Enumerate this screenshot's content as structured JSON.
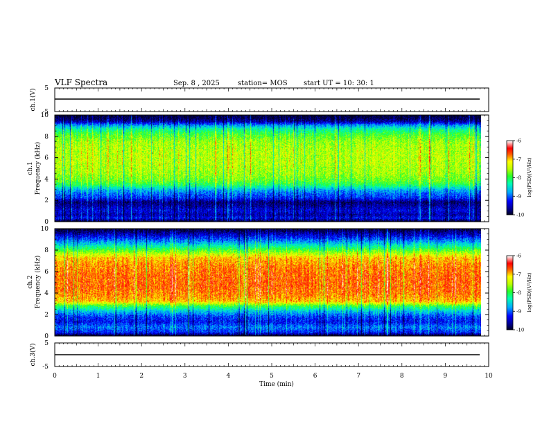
{
  "header": {
    "title": "VLF Spectra",
    "date": "Sep. 8 , 2025",
    "station": "station= MOS",
    "start": "start UT =   10: 30: 1"
  },
  "colors": {
    "colormap": [
      "#000080",
      "#0000ff",
      "#00bfff",
      "#00ff80",
      "#c8ff00",
      "#ffff00",
      "#ff0000",
      "#ffffff"
    ]
  },
  "chart_data": [
    {
      "type": "line",
      "name": "ch1-waveform",
      "ylabel": "ch.1(V)",
      "ylim": [
        -5,
        5
      ],
      "yticks": [
        5,
        -5
      ],
      "xlim": [
        0,
        10
      ],
      "level": 0,
      "description_values": "flat trace near 0 V"
    },
    {
      "type": "heatmap",
      "name": "ch1-spectrogram",
      "ylabel": "ch.1\nFrequency (kHz)",
      "ylabel_lines": [
        "ch.1",
        "Frequency (kHz)"
      ],
      "ylim": [
        0,
        10
      ],
      "yticks": [
        0,
        2,
        4,
        6,
        8,
        10
      ],
      "xlim": [
        0,
        9.85
      ],
      "colorbar": {
        "label": "log(PSD)(V²/Hz)",
        "range": [
          -10,
          -6
        ],
        "ticks": [
          -6,
          -7,
          -8,
          -9,
          -10
        ]
      },
      "profile_freq_khz": [
        0,
        0.3,
        0.6,
        1.0,
        1.4,
        1.8,
        2.2,
        2.6,
        3.0,
        3.4,
        3.8,
        4.5,
        5.5,
        6.5,
        7.5,
        8.2,
        8.7,
        9.1,
        9.4,
        9.7,
        10
      ],
      "profile_log_psd": [
        -10,
        -9.3,
        -9.6,
        -9.4,
        -9.6,
        -9.8,
        -9.2,
        -9.0,
        -8.7,
        -8.1,
        -7.8,
        -7.6,
        -7.5,
        -7.5,
        -7.6,
        -7.9,
        -8.3,
        -8.9,
        -9.6,
        -9.9,
        -10
      ]
    },
    {
      "type": "heatmap",
      "name": "ch2-spectrogram",
      "ylabel": "ch.2\nFrequency (kHz)",
      "ylabel_lines": [
        "ch.2",
        "Frequency (kHz)"
      ],
      "ylim": [
        0,
        10
      ],
      "yticks": [
        0,
        2,
        4,
        6,
        8,
        10
      ],
      "xlim": [
        0,
        9.85
      ],
      "colorbar": {
        "label": "log(PSD)(V²/Hz)",
        "range": [
          -10,
          -6
        ],
        "ticks": [
          -6,
          -7,
          -8,
          -9,
          -10
        ]
      },
      "profile_freq_khz": [
        0,
        0.3,
        0.8,
        1.3,
        1.8,
        2.3,
        2.8,
        3.2,
        3.8,
        4.5,
        5.5,
        6.5,
        7.3,
        7.8,
        8.3,
        8.8,
        9.3,
        9.7,
        10
      ],
      "profile_log_psd": [
        -10,
        -9.2,
        -8.9,
        -9.3,
        -9.1,
        -8.6,
        -7.9,
        -7.0,
        -6.8,
        -6.7,
        -6.7,
        -6.8,
        -7.0,
        -7.6,
        -8.2,
        -8.8,
        -9.3,
        -9.7,
        -10
      ]
    },
    {
      "type": "line",
      "name": "ch3-waveform",
      "ylabel": "ch.3(V)",
      "ylim": [
        -5,
        5
      ],
      "yticks": [
        5,
        -5
      ],
      "xlim": [
        0,
        10
      ],
      "level": 0,
      "description_values": "flat trace near 0 V"
    }
  ],
  "xaxis": {
    "label": "Time (min)",
    "range": [
      0,
      10
    ],
    "ticks": [
      0,
      1,
      2,
      3,
      4,
      5,
      6,
      7,
      8,
      9,
      10
    ]
  }
}
